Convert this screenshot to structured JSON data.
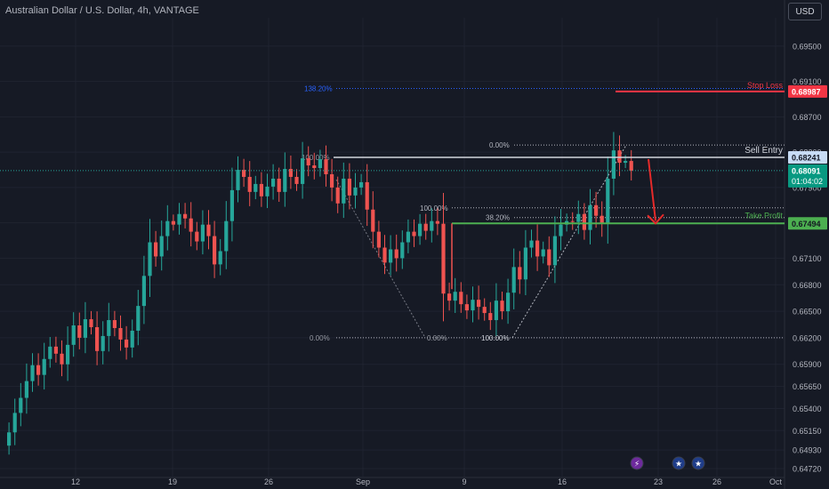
{
  "header": {
    "title": "Australian Dollar / U.S. Dollar, 4h, VANTAGE",
    "currency": "USD"
  },
  "colors": {
    "background": "#161a25",
    "up": "#26a69a",
    "down": "#ef5350",
    "stop_loss": "#f23645",
    "take_profit": "#4caf50",
    "sell_entry": "#d1d4dc",
    "arrow": "#e52a2a"
  },
  "chart_data": {
    "type": "candlestick",
    "timeframe": "4h",
    "symbol": "AUDUSD",
    "ylim": [
      0.6462,
      0.6982
    ],
    "y_ticks": [
      "0.69500",
      "0.69100",
      "0.68700",
      "0.68300",
      "0.67900",
      "0.67500",
      "0.67100",
      "0.66800",
      "0.66500",
      "0.66200",
      "0.65900",
      "0.65650",
      "0.65400",
      "0.65150",
      "0.64930",
      "0.64720"
    ],
    "x_ticks": [
      "12",
      "19",
      "26",
      "Sep",
      "9",
      "16",
      "23",
      "26",
      "Oct"
    ],
    "closes": [
      0.6513,
      0.6535,
      0.6552,
      0.6571,
      0.6589,
      0.6578,
      0.6596,
      0.661,
      0.6602,
      0.659,
      0.6612,
      0.6634,
      0.662,
      0.6641,
      0.6632,
      0.6605,
      0.6622,
      0.664,
      0.6631,
      0.6618,
      0.6609,
      0.6628,
      0.6656,
      0.669,
      0.6728,
      0.6712,
      0.6735,
      0.6752,
      0.6748,
      0.676,
      0.6755,
      0.674,
      0.6729,
      0.6748,
      0.6735,
      0.6703,
      0.6718,
      0.6752,
      0.6787,
      0.681,
      0.6802,
      0.6785,
      0.6794,
      0.678,
      0.6791,
      0.68,
      0.6785,
      0.6811,
      0.6802,
      0.6794,
      0.6823,
      0.6815,
      0.6812,
      0.6822,
      0.6805,
      0.679,
      0.6772,
      0.68,
      0.6781,
      0.679,
      0.6796,
      0.6765,
      0.674,
      0.6722,
      0.6705,
      0.672,
      0.671,
      0.6728,
      0.674,
      0.6735,
      0.6749,
      0.6741,
      0.6752,
      0.6749,
      0.667,
      0.6662,
      0.6672,
      0.6658,
      0.6651,
      0.6663,
      0.6655,
      0.6648,
      0.664,
      0.6662,
      0.665,
      0.6671,
      0.67,
      0.6686,
      0.6722,
      0.673,
      0.6712,
      0.672,
      0.6702,
      0.6735,
      0.6748,
      0.6752,
      0.6751,
      0.676,
      0.6742,
      0.677,
      0.6758,
      0.6749,
      0.68,
      0.6832,
      0.6818,
      0.682,
      0.6809
    ],
    "levels": {
      "stop_loss": 0.68987,
      "sell_entry": 0.68241,
      "current_price": 0.68091,
      "take_profit": 0.67494
    },
    "labels": {
      "stop_loss": "Stop Loss",
      "sell_entry": "Sell Entry",
      "take_profit": "Take Profit",
      "stop_loss_tag": "0.68987",
      "sell_entry_tag": "0.68241",
      "current_price_tag": "0.68091",
      "countdown_tag": "01:04:02",
      "take_profit_tag": "0.67494"
    },
    "fib_main": {
      "high": 0.68241,
      "low": 0.662,
      "labels": [
        "138.20%",
        "100.00%",
        "0.00%",
        "0.00%"
      ]
    },
    "fib_secondary": {
      "labels": [
        "0.00%",
        "100.00%",
        "38.20%",
        "100.00%"
      ]
    }
  }
}
